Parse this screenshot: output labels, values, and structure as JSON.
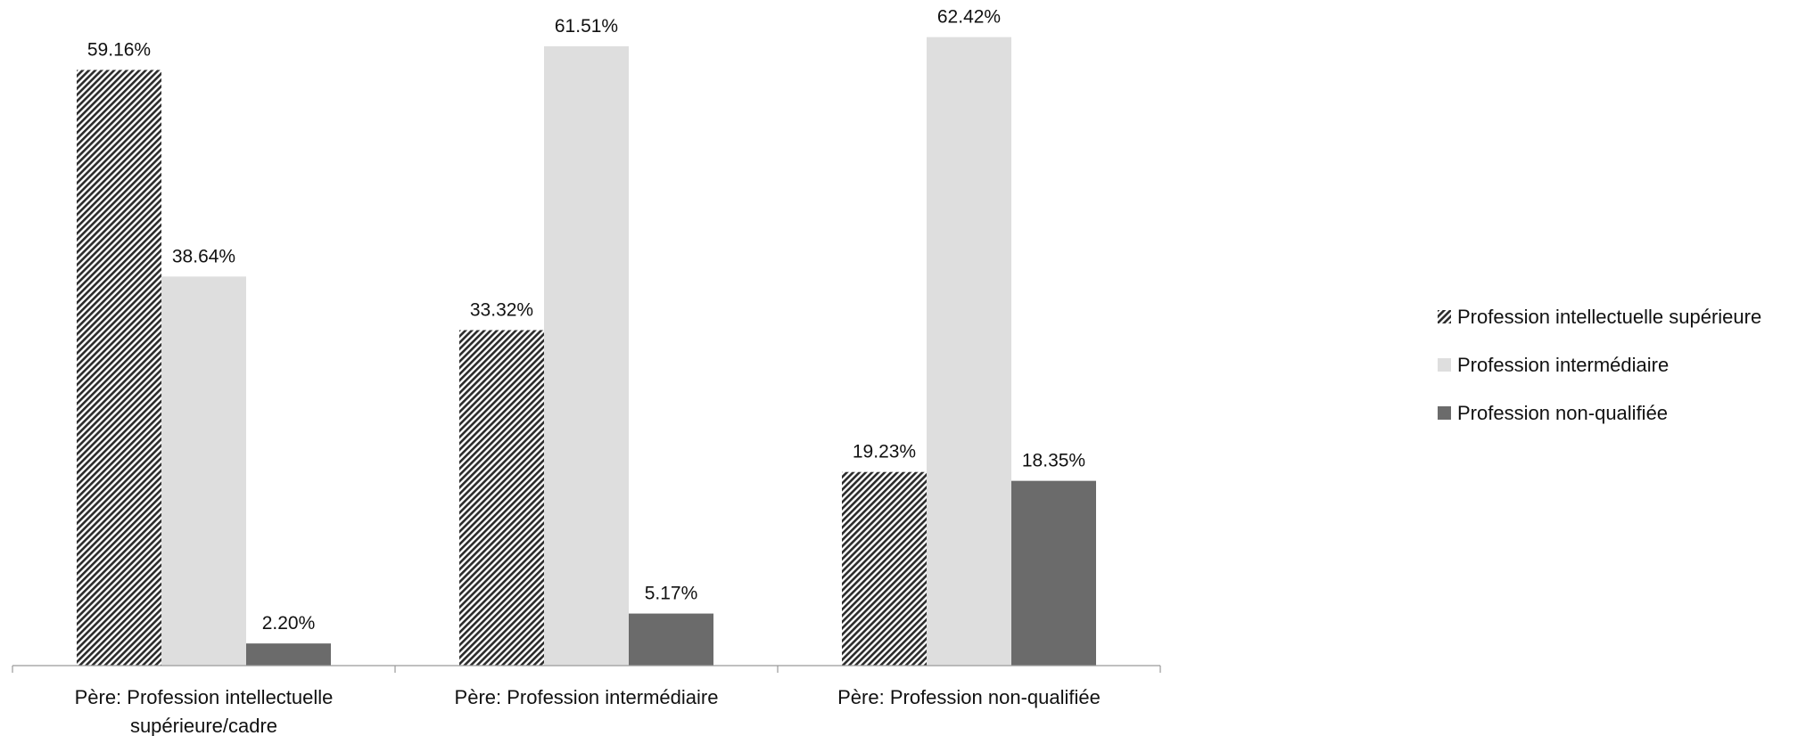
{
  "chart_data": {
    "type": "bar",
    "title": "",
    "xlabel": "",
    "ylabel": "",
    "ylim": [
      0,
      65
    ],
    "grid": false,
    "legend_position": "right",
    "categories": [
      "Père: Profession intellectuelle supérieure/cadre",
      "Père: Profession intermédiaire",
      "Père: Profession non-qualifiée"
    ],
    "category_label_lines": [
      [
        "Père: Profession intellectuelle",
        "supérieure/cadre"
      ],
      [
        "Père: Profession intermédiaire"
      ],
      [
        "Père: Profession non-qualifiée"
      ]
    ],
    "series": [
      {
        "name": "Profession intellectuelle supérieure",
        "values": [
          59.16,
          33.32,
          19.23
        ],
        "labels": [
          "59.16%",
          "33.32%",
          "19.23%"
        ],
        "style": "hatched",
        "color": "#3a3a3a"
      },
      {
        "name": "Profession intermédiaire",
        "values": [
          38.64,
          61.51,
          62.42
        ],
        "labels": [
          "38.64%",
          "61.51%",
          "62.42%"
        ],
        "style": "solid",
        "color": "#dedede"
      },
      {
        "name": "Profession non-qualifiée",
        "values": [
          2.2,
          5.17,
          18.35
        ],
        "labels": [
          "2.20%",
          "5.17%",
          "18.35%"
        ],
        "style": "solid",
        "color": "#6b6b6b"
      }
    ]
  }
}
